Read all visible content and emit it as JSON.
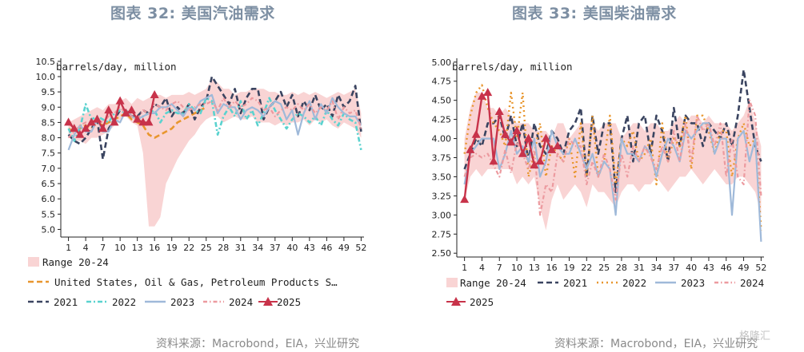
{
  "charts": {
    "left": {
      "title": "图表 32: 美国汽油需求",
      "source": "资料来源：Macrobond，EIA，兴业研究"
    },
    "right": {
      "title": "图表 33: 美国柴油需求",
      "source": "资料来源：Macrobond，EIA，兴业研究"
    }
  },
  "watermark": "格隆汇",
  "colors": {
    "range": "#f9d4d4",
    "s2021": "#3a4460",
    "s2022": "#5ad2cf",
    "s2023": "#9fb9d9",
    "s2024": "#ec9a9f",
    "s2025": "#c8334a",
    "eia": "#e8962e"
  },
  "chart_data": [
    {
      "type": "line",
      "ylabel": "barrels/day, million",
      "xlabel": "",
      "ylim": [
        4.75,
        10.6
      ],
      "xlim": [
        0.5,
        52.5
      ],
      "x_ticks": [
        1,
        4,
        7,
        10,
        13,
        16,
        19,
        22,
        25,
        28,
        31,
        34,
        37,
        40,
        43,
        46,
        49,
        52
      ],
      "y_ticks": [
        5.0,
        5.5,
        6.0,
        6.5,
        7.0,
        7.5,
        8.0,
        8.5,
        9.0,
        9.5,
        10.0,
        10.5
      ],
      "y_tick_labels": [
        "5.0",
        "5.5",
        "6.0",
        "6.5",
        "7.0",
        "7.5",
        "8.0",
        "8.5",
        "9.0",
        "9.5",
        "10.0",
        "10.5"
      ],
      "range": {
        "name": "Range 20-24",
        "low": [
          8.1,
          7.9,
          7.9,
          7.8,
          8.0,
          8.0,
          8.1,
          8.2,
          8.4,
          8.6,
          8.7,
          8.5,
          8.4,
          7.5,
          5.1,
          5.1,
          5.4,
          6.5,
          6.9,
          7.3,
          7.6,
          7.9,
          8.1,
          8.4,
          8.6,
          8.7,
          8.7,
          8.5,
          8.6,
          8.7,
          8.6,
          8.6,
          8.7,
          8.5,
          8.5,
          8.5,
          8.4,
          8.5,
          8.4,
          8.5,
          8.5,
          8.6,
          8.4,
          8.6,
          8.5,
          8.6,
          8.4,
          8.3,
          8.5,
          8.4,
          8.3,
          8.0
        ],
        "high": [
          8.5,
          8.6,
          8.7,
          8.8,
          8.9,
          9.0,
          8.9,
          9.1,
          9.1,
          9.2,
          9.3,
          9.1,
          9.3,
          9.2,
          9.3,
          9.4,
          9.4,
          9.3,
          9.4,
          9.4,
          9.4,
          9.5,
          9.4,
          9.5,
          9.6,
          9.9,
          9.8,
          9.6,
          9.6,
          9.4,
          9.5,
          9.5,
          9.6,
          9.6,
          9.6,
          9.5,
          9.5,
          9.4,
          9.4,
          9.5,
          9.4,
          9.5,
          9.4,
          9.5,
          9.4,
          9.3,
          9.4,
          9.5,
          9.4,
          9.5,
          9.6,
          8.8
        ]
      },
      "series": [
        {
          "name": "United States, Oil & Gas, Petroleum Products S…",
          "x_start": 1,
          "values": [
            8.3,
            8.2,
            8.3,
            8.4,
            8.3,
            8.5,
            8.4,
            8.5,
            8.6,
            8.7,
            8.8,
            8.6,
            8.5,
            8.4,
            8.1,
            8.0,
            8.1,
            8.2,
            8.3,
            8.5,
            8.6,
            8.7,
            8.8,
            8.9,
            9.0
          ]
        },
        {
          "name": "2021",
          "x_start": 1,
          "values": [
            8.1,
            7.9,
            7.8,
            8.0,
            8.3,
            8.6,
            7.3,
            8.3,
            8.6,
            8.9,
            8.9,
            8.7,
            8.7,
            8.9,
            8.8,
            9.1,
            9.0,
            9.3,
            8.7,
            9.0,
            8.8,
            9.1,
            8.6,
            9.0,
            9.2,
            10.0,
            9.7,
            9.4,
            9.1,
            9.6,
            8.8,
            9.3,
            9.6,
            9.6,
            8.6,
            9.0,
            9.2,
            9.5,
            9.0,
            9.4,
            8.7,
            9.2,
            8.9,
            9.4,
            8.9,
            9.1,
            8.7,
            9.4,
            9.0,
            9.2,
            9.7,
            8.2
          ]
        },
        {
          "name": "2022",
          "x_start": 1,
          "values": [
            8.3,
            7.9,
            8.3,
            9.1,
            8.6,
            8.7,
            8.6,
            8.5,
            8.8,
            8.9,
            8.8,
            8.7,
            8.6,
            8.7,
            8.8,
            8.9,
            8.5,
            8.8,
            8.9,
            8.8,
            8.8,
            9.1,
            8.9,
            8.8,
            9.3,
            9.2,
            8.1,
            8.7,
            9.0,
            8.7,
            9.2,
            8.6,
            8.9,
            8.4,
            8.8,
            9.3,
            8.9,
            8.6,
            8.3,
            8.6,
            8.8,
            8.7,
            8.5,
            8.7,
            8.4,
            8.9,
            8.6,
            8.4,
            8.8,
            8.6,
            8.5,
            7.6
          ]
        },
        {
          "name": "2023",
          "x_start": 1,
          "values": [
            7.6,
            8.1,
            8.4,
            8.2,
            8.2,
            8.6,
            8.2,
            8.2,
            8.6,
            8.5,
            8.9,
            8.7,
            8.6,
            8.7,
            8.8,
            8.8,
            9.0,
            9.0,
            9.1,
            8.9,
            8.7,
            9.0,
            8.9,
            9.2,
            9.3,
            9.4,
            8.8,
            9.1,
            9.0,
            9.0,
            8.6,
            8.9,
            9.0,
            8.9,
            8.7,
            9.0,
            9.2,
            9.1,
            8.6,
            8.9,
            8.1,
            8.8,
            9.2,
            8.6,
            9.1,
            8.8,
            9.3,
            9.0,
            8.8,
            8.7,
            8.7,
            8.4
          ]
        },
        {
          "name": "2024",
          "x_start": 1,
          "values": [
            8.0,
            8.2,
            8.4,
            8.5,
            8.4,
            8.6,
            8.5,
            8.7,
            8.8,
            9.0,
            8.8,
            8.7,
            8.6,
            8.9,
            8.8,
            9.1,
            9.0,
            8.9,
            9.1,
            9.2,
            9.0,
            8.9,
            9.0,
            9.1,
            9.1,
            9.2,
            8.9,
            9.3,
            9.0,
            9.2,
            9.0,
            9.1,
            9.3,
            9.2,
            8.9,
            9.0,
            8.7,
            8.9,
            9.0,
            8.9,
            9.1,
            8.9,
            9.1,
            8.8,
            9.0,
            8.9,
            9.2,
            8.6,
            9.0,
            8.8,
            8.9,
            8.3
          ]
        },
        {
          "name": "2025",
          "x_start": 1,
          "values": [
            8.5,
            8.3,
            8.1,
            8.3,
            8.5,
            8.6,
            8.3,
            8.9,
            8.5,
            9.2,
            8.8,
            8.9,
            8.6,
            8.5,
            8.5,
            9.4
          ]
        }
      ],
      "legend": [
        "Range 20-24",
        "United States, Oil & Gas, Petroleum Products S…",
        "2021",
        "2022",
        "2023",
        "2024",
        "2025"
      ]
    },
    {
      "type": "line",
      "ylabel": "barrels/day, million",
      "xlabel": "",
      "ylim": [
        2.45,
        5.05
      ],
      "xlim": [
        0.5,
        52.5
      ],
      "x_ticks": [
        1,
        4,
        7,
        10,
        13,
        16,
        19,
        22,
        25,
        28,
        31,
        34,
        37,
        40,
        43,
        46,
        49,
        52
      ],
      "y_ticks": [
        2.5,
        2.75,
        3.0,
        3.25,
        3.5,
        3.75,
        4.0,
        4.25,
        4.5,
        4.75,
        5.0
      ],
      "y_tick_labels": [
        "2.50",
        "2.75",
        "3.00",
        "3.25",
        "3.50",
        "3.75",
        "4.00",
        "4.25",
        "4.50",
        "4.75",
        "5.00"
      ],
      "range": {
        "name": "Range 20-24",
        "low": [
          3.2,
          3.5,
          3.6,
          3.5,
          3.6,
          3.6,
          3.6,
          3.6,
          3.6,
          3.4,
          3.5,
          3.4,
          3.5,
          3.1,
          2.8,
          3.2,
          3.4,
          3.2,
          3.3,
          3.4,
          3.3,
          3.1,
          3.4,
          3.3,
          3.3,
          3.2,
          3.1,
          3.3,
          3.4,
          3.4,
          3.3,
          3.4,
          3.4,
          3.5,
          3.4,
          3.3,
          3.4,
          3.5,
          3.5,
          3.6,
          3.5,
          3.4,
          3.5,
          3.6,
          3.5,
          3.4,
          3.4,
          3.5,
          3.5,
          3.4,
          3.3,
          3.0
        ],
        "high": [
          4.0,
          4.4,
          4.6,
          4.6,
          4.4,
          4.4,
          4.3,
          4.4,
          4.3,
          4.2,
          4.2,
          4.2,
          4.1,
          4.1,
          4.1,
          4.0,
          4.2,
          4.2,
          4.0,
          4.1,
          4.2,
          4.2,
          4.2,
          4.1,
          4.2,
          4.2,
          4.2,
          4.0,
          4.1,
          4.2,
          4.2,
          4.1,
          4.2,
          4.2,
          4.1,
          4.1,
          4.2,
          4.3,
          4.2,
          4.3,
          4.3,
          4.2,
          4.3,
          4.2,
          4.2,
          4.2,
          4.1,
          4.2,
          4.3,
          4.5,
          4.2,
          3.9
        ]
      },
      "series": [
        {
          "name": "2021",
          "x_start": 1,
          "values": [
            3.6,
            3.8,
            4.0,
            3.9,
            4.2,
            4.2,
            4.3,
            4.0,
            4.3,
            3.9,
            4.2,
            3.7,
            4.2,
            3.9,
            3.8,
            4.1,
            4.0,
            3.8,
            4.1,
            4.2,
            4.4,
            3.5,
            4.3,
            3.8,
            4.2,
            4.2,
            3.3,
            4.0,
            4.3,
            3.7,
            4.2,
            4.3,
            3.8,
            4.3,
            4.1,
            3.7,
            4.4,
            3.9,
            4.3,
            4.2,
            4.2,
            3.9,
            4.2,
            4.1,
            4.0,
            4.2,
            3.9,
            4.3,
            4.9,
            4.4,
            3.9,
            3.7
          ]
        },
        {
          "name": "2022",
          "x_start": 1,
          "values": [
            3.8,
            4.3,
            4.6,
            4.7,
            4.4,
            4.2,
            4.1,
            3.9,
            4.6,
            4.0,
            4.6,
            3.5,
            3.8,
            4.2,
            3.5,
            3.9,
            3.8,
            3.7,
            4.0,
            3.5,
            4.2,
            3.5,
            4.3,
            3.5,
            3.7,
            4.3,
            3.4,
            4.0,
            3.9,
            4.1,
            3.7,
            3.8,
            4.0,
            3.4,
            4.2,
            3.7,
            4.0,
            3.9,
            4.3,
            3.6,
            4.3,
            4.3,
            4.1,
            3.8,
            4.1,
            4.1,
            3.5,
            4.0,
            4.2,
            3.9,
            4.0,
            2.8
          ]
        },
        {
          "name": "2023",
          "x_start": 1,
          "values": [
            3.4,
            3.8,
            3.9,
            4.0,
            4.0,
            4.0,
            3.6,
            3.8,
            4.1,
            3.8,
            3.9,
            3.7,
            4.0,
            3.5,
            3.7,
            4.1,
            3.9,
            3.8,
            3.8,
            4.0,
            3.8,
            3.6,
            3.8,
            3.5,
            3.7,
            3.6,
            3.0,
            4.0,
            3.8,
            3.8,
            3.7,
            3.9,
            3.8,
            3.5,
            3.8,
            4.0,
            3.9,
            3.7,
            4.1,
            4.0,
            4.1,
            4.2,
            4.2,
            3.8,
            4.0,
            4.0,
            3.0,
            4.0,
            4.1,
            3.7,
            4.0,
            2.65
          ]
        },
        {
          "name": "2024",
          "x_start": 1,
          "values": [
            3.5,
            3.75,
            3.8,
            3.75,
            3.8,
            3.65,
            3.5,
            3.85,
            3.55,
            3.95,
            3.8,
            3.6,
            3.85,
            3.0,
            3.4,
            3.3,
            3.8,
            3.7,
            4.0,
            3.9,
            3.9,
            3.4,
            3.7,
            3.5,
            3.8,
            3.6,
            3.2,
            3.8,
            3.5,
            3.9,
            3.7,
            3.9,
            3.75,
            3.6,
            3.9,
            3.7,
            4.1,
            3.7,
            4.2,
            3.7,
            4.3,
            4.1,
            4.2,
            3.9,
            4.2,
            3.5,
            4.0,
            3.5,
            3.4,
            4.5,
            4.3,
            3.25
          ]
        },
        {
          "name": "2025",
          "x_start": 1,
          "values": [
            3.2,
            3.85,
            4.05,
            4.55,
            4.6,
            3.7,
            4.35,
            4.05,
            3.95,
            4.1,
            3.8,
            4.0,
            3.65,
            3.7,
            4.0,
            3.85,
            3.9
          ]
        }
      ],
      "legend": [
        "Range 20-24",
        "2021",
        "2022",
        "2023",
        "2024",
        "2025"
      ]
    }
  ]
}
